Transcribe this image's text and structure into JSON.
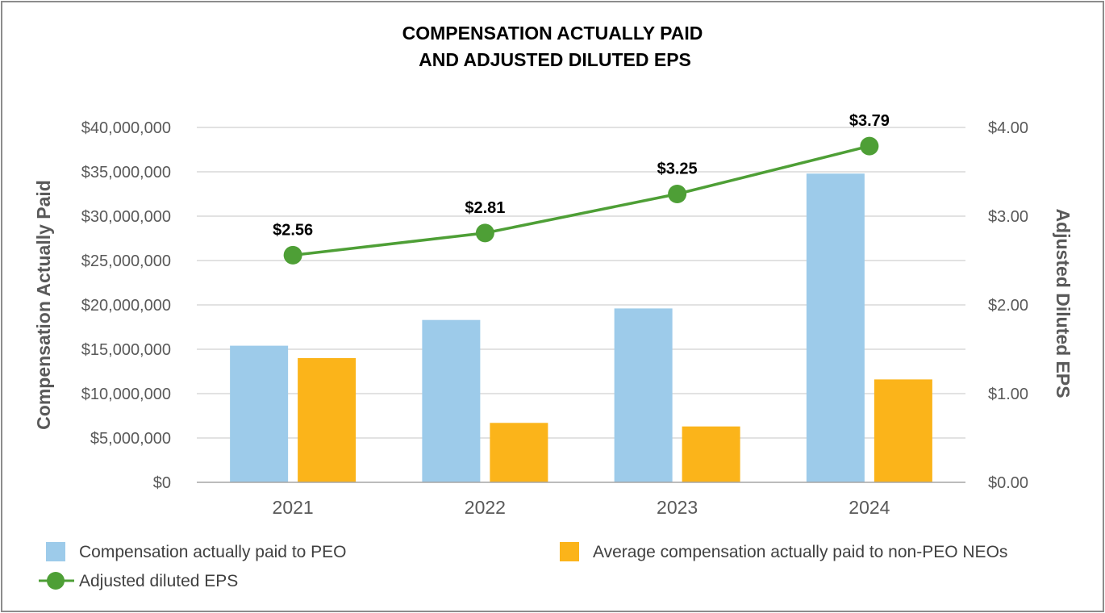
{
  "chart_data": {
    "type": "bar",
    "title_lines": [
      "COMPENSATION ACTUALLY PAID",
      "AND ADJUSTED DILUTED EPS"
    ],
    "categories": [
      "2021",
      "2022",
      "2023",
      "2024"
    ],
    "series": [
      {
        "name": "Compensation actually paid to PEO",
        "type": "bar",
        "axis": "left",
        "color": "#9dcbea",
        "values": [
          15400000,
          18300000,
          19600000,
          34800000
        ]
      },
      {
        "name": "Average compensation actually paid to non-PEO NEOs",
        "type": "bar",
        "axis": "left",
        "color": "#fbb41a",
        "values": [
          14000000,
          6700000,
          6300000,
          11600000
        ]
      },
      {
        "name": "Adjusted diluted EPS",
        "type": "line",
        "axis": "right",
        "color": "#4e9f36",
        "values": [
          2.56,
          2.81,
          3.25,
          3.79
        ],
        "labels": [
          "$2.56",
          "$2.81",
          "$3.25",
          "$3.79"
        ]
      }
    ],
    "ylabel": "Compensation Actually Paid",
    "y2label": "Adjusted Diluted EPS",
    "ylim": [
      0,
      40000000
    ],
    "y2lim": [
      0,
      4
    ],
    "yticks": [
      0,
      5000000,
      10000000,
      15000000,
      20000000,
      25000000,
      30000000,
      35000000,
      40000000
    ],
    "ytick_labels": [
      "$0",
      "$5,000,000",
      "$10,000,000",
      "$15,000,000",
      "$20,000,000",
      "$25,000,000",
      "$30,000,000",
      "$35,000,000",
      "$40,000,000"
    ],
    "y2ticks": [
      0,
      1,
      2,
      3,
      4
    ],
    "y2tick_labels": [
      "$0.00",
      "$1.00",
      "$2.00",
      "$3.00",
      "$4.00"
    ],
    "grid": true,
    "legend_position": "bottom"
  }
}
